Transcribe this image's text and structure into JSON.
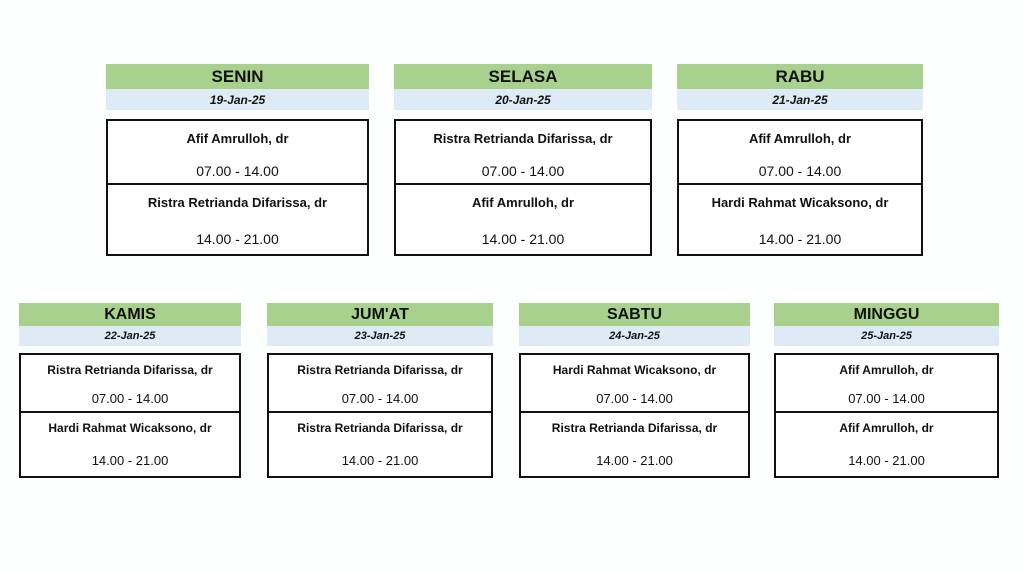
{
  "colors": {
    "header": "#a9d18e",
    "date": "#deebf7",
    "border": "#111111"
  },
  "days": [
    {
      "day": "SENIN",
      "date": "19-Jan-25",
      "shifts": [
        {
          "doctor": "Afif Amrulloh, dr",
          "time": "07.00 - 14.00"
        },
        {
          "doctor": "Ristra Retrianda Difarissa, dr",
          "time": "14.00 - 21.00"
        }
      ]
    },
    {
      "day": "SELASA",
      "date": "20-Jan-25",
      "shifts": [
        {
          "doctor": "Ristra Retrianda Difarissa, dr",
          "time": "07.00 - 14.00"
        },
        {
          "doctor": "Afif Amrulloh, dr",
          "time": "14.00 - 21.00"
        }
      ]
    },
    {
      "day": "RABU",
      "date": "21-Jan-25",
      "shifts": [
        {
          "doctor": "Afif Amrulloh, dr",
          "time": "07.00 - 14.00"
        },
        {
          "doctor": "Hardi Rahmat Wicaksono, dr",
          "time": "14.00 - 21.00"
        }
      ]
    },
    {
      "day": "KAMIS",
      "date": "22-Jan-25",
      "shifts": [
        {
          "doctor": "Ristra Retrianda Difarissa, dr",
          "time": "07.00 - 14.00"
        },
        {
          "doctor": "Hardi Rahmat Wicaksono, dr",
          "time": "14.00 - 21.00"
        }
      ]
    },
    {
      "day": "JUM'AT",
      "date": "23-Jan-25",
      "shifts": [
        {
          "doctor": "Ristra Retrianda Difarissa, dr",
          "time": "07.00 - 14.00"
        },
        {
          "doctor": "Ristra Retrianda Difarissa, dr",
          "time": "14.00 - 21.00"
        }
      ]
    },
    {
      "day": "SABTU",
      "date": "24-Jan-25",
      "shifts": [
        {
          "doctor": "Hardi Rahmat Wicaksono, dr",
          "time": "07.00 - 14.00"
        },
        {
          "doctor": "Ristra Retrianda Difarissa, dr",
          "time": "14.00 - 21.00"
        }
      ]
    },
    {
      "day": "MINGGU",
      "date": "25-Jan-25",
      "shifts": [
        {
          "doctor": "Afif Amrulloh, dr",
          "time": "07.00 - 14.00"
        },
        {
          "doctor": "Afif Amrulloh, dr",
          "time": "14.00 - 21.00"
        }
      ]
    }
  ]
}
